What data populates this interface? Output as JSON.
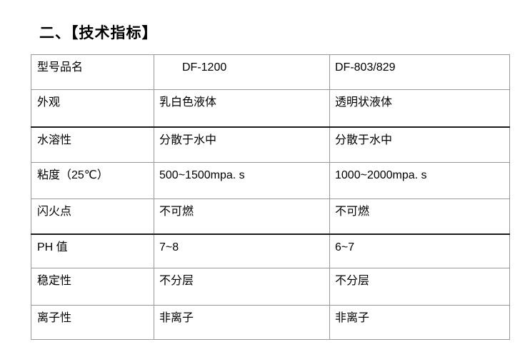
{
  "heading": "二、【技术指标】",
  "colors": {
    "background": "#ffffff",
    "text": "#000000",
    "border_gray": "#999999",
    "border_dark": "#1a1a1a"
  },
  "table": {
    "rows": [
      [
        "型号品名",
        "DF-1200",
        "DF-803/829"
      ],
      [
        "外观",
        "乳白色液体",
        "透明状液体"
      ],
      [
        "水溶性",
        "分散于水中",
        "分散于水中"
      ],
      [
        "粘度（25℃）",
        "500~1500mpa. s",
        "1000~2000mpa. s"
      ],
      [
        "闪火点",
        "不可燃",
        "不可燃"
      ],
      [
        "PH 值",
        "7~8",
        "6~7"
      ],
      [
        "稳定性",
        "不分层",
        "不分层"
      ],
      [
        "离子性",
        "非离子",
        "非离子"
      ]
    ]
  }
}
